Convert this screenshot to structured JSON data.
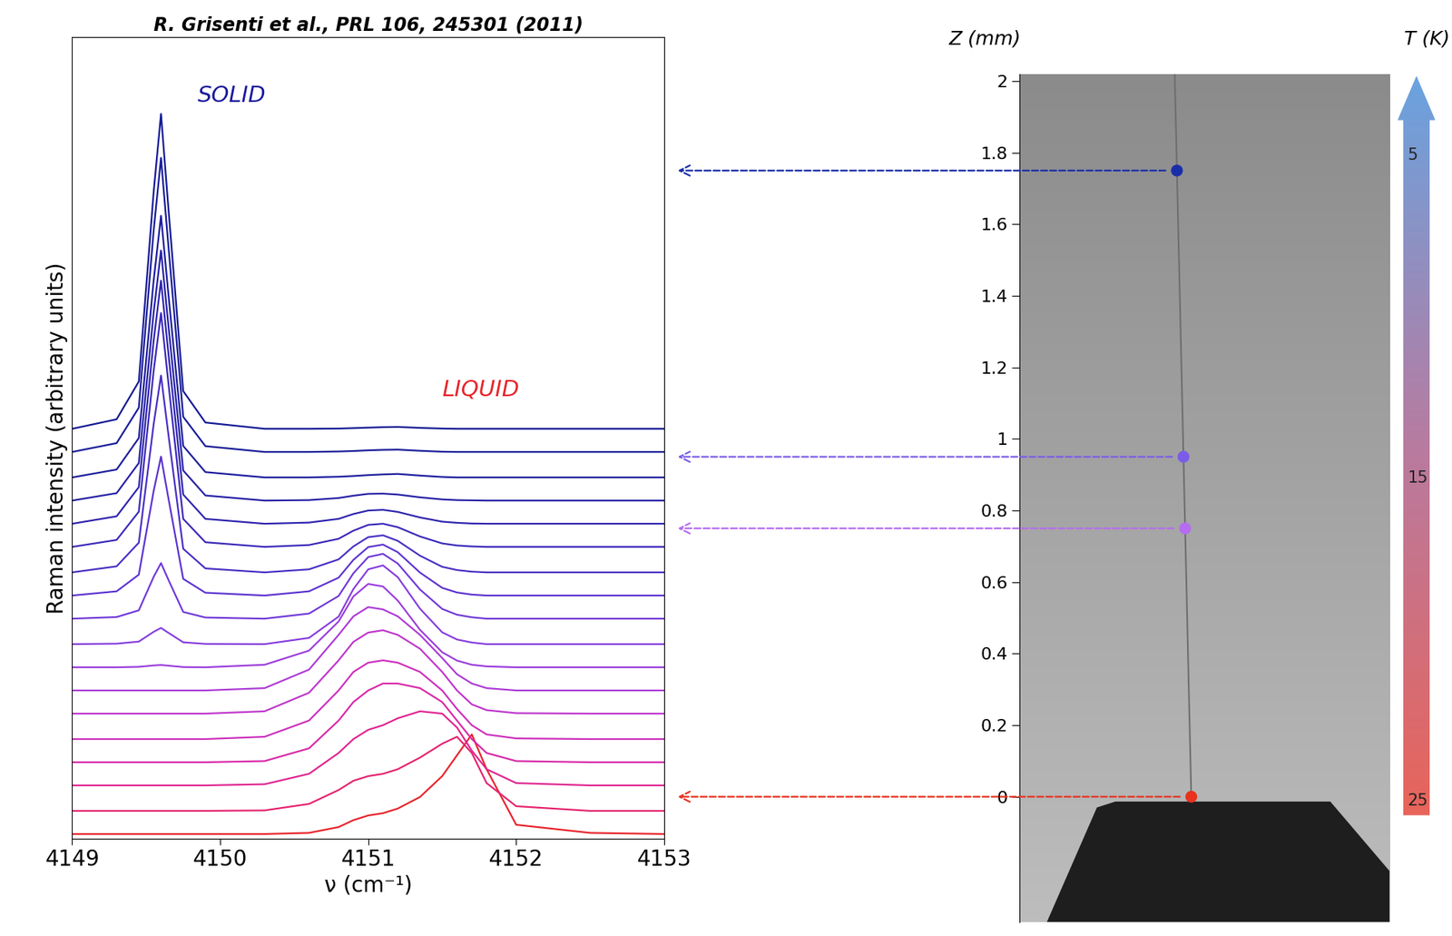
{
  "chart_data": [
    {
      "type": "line",
      "title": "R. Grisenti et al., PRL 106, 245301 (2011)",
      "xlabel": "ν (cm⁻¹)",
      "ylabel": "Raman intensity (arbitrary units)",
      "xlim": [
        4149,
        4153
      ],
      "xticks": [
        4149,
        4150,
        4151,
        4152,
        4153
      ],
      "ylim": [
        0,
        34.6
      ],
      "tick_labels": "x",
      "annotations": [
        {
          "text": "SOLID",
          "color": "#1a1a9c"
        },
        {
          "text": "LIQUID",
          "color": "#e8232b"
        }
      ],
      "x": [
        4149.0,
        4149.3,
        4149.45,
        4149.55,
        4149.6,
        4149.65,
        4149.75,
        4149.9,
        4150.3,
        4150.6,
        4150.8,
        4150.9,
        4151.0,
        4151.1,
        4151.2,
        4151.35,
        4151.5,
        4151.6,
        4151.7,
        4151.8,
        4152.0,
        4152.5,
        4153.0
      ],
      "series": [
        {
          "color": "#e8232b",
          "values": [
            0.2,
            0.2,
            0.2,
            0.2,
            0.2,
            0.2,
            0.2,
            0.2,
            0.2,
            0.25,
            0.5,
            0.8,
            1.0,
            1.1,
            1.3,
            1.8,
            2.7,
            3.6,
            4.5,
            3.0,
            0.6,
            0.25,
            0.2
          ]
        },
        {
          "color": "#e6236f",
          "values": [
            1.2,
            1.2,
            1.2,
            1.2,
            1.2,
            1.2,
            1.2,
            1.2,
            1.22,
            1.5,
            2.1,
            2.5,
            2.7,
            2.8,
            3.0,
            3.5,
            4.1,
            4.4,
            3.7,
            2.4,
            1.4,
            1.2,
            1.2
          ]
        },
        {
          "color": "#e02590",
          "values": [
            2.3,
            2.3,
            2.3,
            2.3,
            2.3,
            2.3,
            2.3,
            2.3,
            2.35,
            2.8,
            3.7,
            4.3,
            4.7,
            4.9,
            5.2,
            5.5,
            5.4,
            4.8,
            3.8,
            3.0,
            2.4,
            2.3,
            2.3
          ]
        },
        {
          "color": "#d829a8",
          "values": [
            3.3,
            3.3,
            3.3,
            3.3,
            3.3,
            3.3,
            3.3,
            3.3,
            3.35,
            3.9,
            5.1,
            5.9,
            6.4,
            6.7,
            6.7,
            6.5,
            5.9,
            5.1,
            4.3,
            3.7,
            3.35,
            3.3,
            3.3
          ]
        },
        {
          "color": "#cd2fbd",
          "values": [
            4.3,
            4.3,
            4.3,
            4.3,
            4.3,
            4.3,
            4.3,
            4.3,
            4.4,
            5.1,
            6.4,
            7.2,
            7.6,
            7.7,
            7.6,
            7.2,
            6.4,
            5.6,
            4.9,
            4.5,
            4.33,
            4.3,
            4.3
          ]
        },
        {
          "color": "#bf35cc",
          "values": [
            5.4,
            5.4,
            5.4,
            5.4,
            5.4,
            5.4,
            5.4,
            5.4,
            5.5,
            6.3,
            7.7,
            8.5,
            8.9,
            9.0,
            8.8,
            8.2,
            7.2,
            6.4,
            5.8,
            5.55,
            5.42,
            5.4,
            5.4
          ]
        },
        {
          "color": "#ad3ad6",
          "values": [
            6.4,
            6.4,
            6.4,
            6.4,
            6.4,
            6.4,
            6.4,
            6.4,
            6.5,
            7.3,
            8.8,
            9.6,
            10.0,
            9.9,
            9.6,
            8.8,
            7.8,
            7.1,
            6.7,
            6.5,
            6.4,
            6.4,
            6.4
          ]
        },
        {
          "color": "#9a3ddc",
          "values": [
            7.4,
            7.4,
            7.42,
            7.48,
            7.5,
            7.47,
            7.41,
            7.4,
            7.51,
            8.12,
            9.38,
            10.46,
            11.0,
            10.89,
            10.28,
            9.02,
            8.05,
            7.69,
            7.51,
            7.44,
            7.4,
            7.4,
            7.4
          ]
        },
        {
          "color": "#863ddd",
          "values": [
            8.4,
            8.42,
            8.51,
            8.93,
            9.1,
            8.89,
            8.48,
            8.41,
            8.4,
            8.67,
            9.59,
            10.78,
            11.63,
            11.8,
            11.29,
            9.93,
            8.91,
            8.6,
            8.47,
            8.4,
            8.4,
            8.4,
            8.4
          ]
        },
        {
          "color": "#7038d8",
          "values": [
            9.5,
            9.57,
            9.86,
            11.3,
            11.9,
            11.18,
            9.79,
            9.55,
            9.5,
            9.72,
            10.48,
            11.46,
            12.16,
            12.3,
            11.88,
            10.76,
            9.92,
            9.67,
            9.56,
            9.5,
            9.5,
            9.5,
            9.5
          ]
        },
        {
          "color": "#5c33cf",
          "values": [
            10.5,
            10.68,
            11.4,
            15.0,
            16.5,
            14.7,
            11.22,
            10.62,
            10.5,
            10.68,
            11.27,
            12.04,
            12.59,
            12.7,
            12.37,
            11.49,
            10.83,
            10.63,
            10.54,
            10.5,
            10.5,
            10.5,
            10.5
          ]
        },
        {
          "color": "#4a2ec4",
          "values": [
            11.5,
            11.76,
            12.78,
            17.88,
            20.0,
            17.45,
            12.52,
            11.67,
            11.5,
            11.63,
            12.06,
            12.62,
            13.02,
            13.1,
            12.86,
            12.22,
            11.74,
            11.6,
            11.53,
            11.5,
            11.5,
            11.5,
            11.5
          ]
        },
        {
          "color": "#3b29b9",
          "values": [
            12.6,
            12.9,
            14.12,
            20.18,
            22.7,
            19.67,
            13.81,
            12.8,
            12.6,
            12.68,
            12.95,
            13.3,
            13.55,
            13.6,
            13.45,
            13.05,
            12.75,
            12.66,
            12.62,
            12.6,
            12.6,
            12.6,
            12.6
          ]
        },
        {
          "color": "#2f24ae",
          "values": [
            13.6,
            13.92,
            15.18,
            21.48,
            24.1,
            20.95,
            14.86,
            13.81,
            13.6,
            13.65,
            13.81,
            14.02,
            14.17,
            14.2,
            14.11,
            13.87,
            13.69,
            13.64,
            13.61,
            13.6,
            13.6,
            13.6,
            13.6
          ]
        },
        {
          "color": "#2520a5",
          "values": [
            14.6,
            14.92,
            16.22,
            22.7,
            25.4,
            22.16,
            15.9,
            14.82,
            14.6,
            14.62,
            14.71,
            14.81,
            14.89,
            14.9,
            14.86,
            14.74,
            14.65,
            14.62,
            14.61,
            14.6,
            14.6,
            14.6,
            14.6
          ]
        },
        {
          "color": "#1d1d9e",
          "values": [
            15.6,
            15.94,
            17.3,
            24.08,
            26.9,
            23.51,
            16.96,
            15.83,
            15.6,
            15.6,
            15.63,
            15.66,
            15.7,
            15.73,
            15.75,
            15.68,
            15.62,
            15.6,
            15.6,
            15.6,
            15.6,
            15.6,
            15.6
          ]
        },
        {
          "color": "#181c98",
          "values": [
            16.7,
            17.08,
            18.61,
            26.23,
            29.4,
            25.59,
            18.22,
            16.95,
            16.7,
            16.7,
            16.72,
            16.74,
            16.77,
            16.79,
            16.8,
            16.75,
            16.71,
            16.7,
            16.7,
            16.7,
            16.7,
            16.7,
            16.7
          ]
        },
        {
          "color": "#141a93",
          "values": [
            17.7,
            18.11,
            19.74,
            27.9,
            31.3,
            27.22,
            19.33,
            17.97,
            17.7,
            17.7,
            17.71,
            17.73,
            17.75,
            17.77,
            17.78,
            17.74,
            17.71,
            17.7,
            17.7,
            17.7,
            17.7,
            17.7,
            17.7
          ]
        }
      ]
    },
    {
      "type": "scatter",
      "ylabel": "Z (mm)",
      "ylim": [
        -0.35,
        2.02
      ],
      "yticks": [
        0,
        0.2,
        0.4,
        0.6,
        0.8,
        1,
        1.2,
        1.4,
        1.6,
        1.8,
        2
      ],
      "values": [
        1.75,
        0.95,
        0.75,
        0
      ],
      "colors": [
        "#1a2ea8",
        "#7a5ce8",
        "#b56cf0",
        "#e8321e"
      ],
      "y2label": "T (K)",
      "y2lim": [
        25.5,
        2.6
      ],
      "y2ticks": [
        5,
        15,
        25
      ]
    }
  ]
}
